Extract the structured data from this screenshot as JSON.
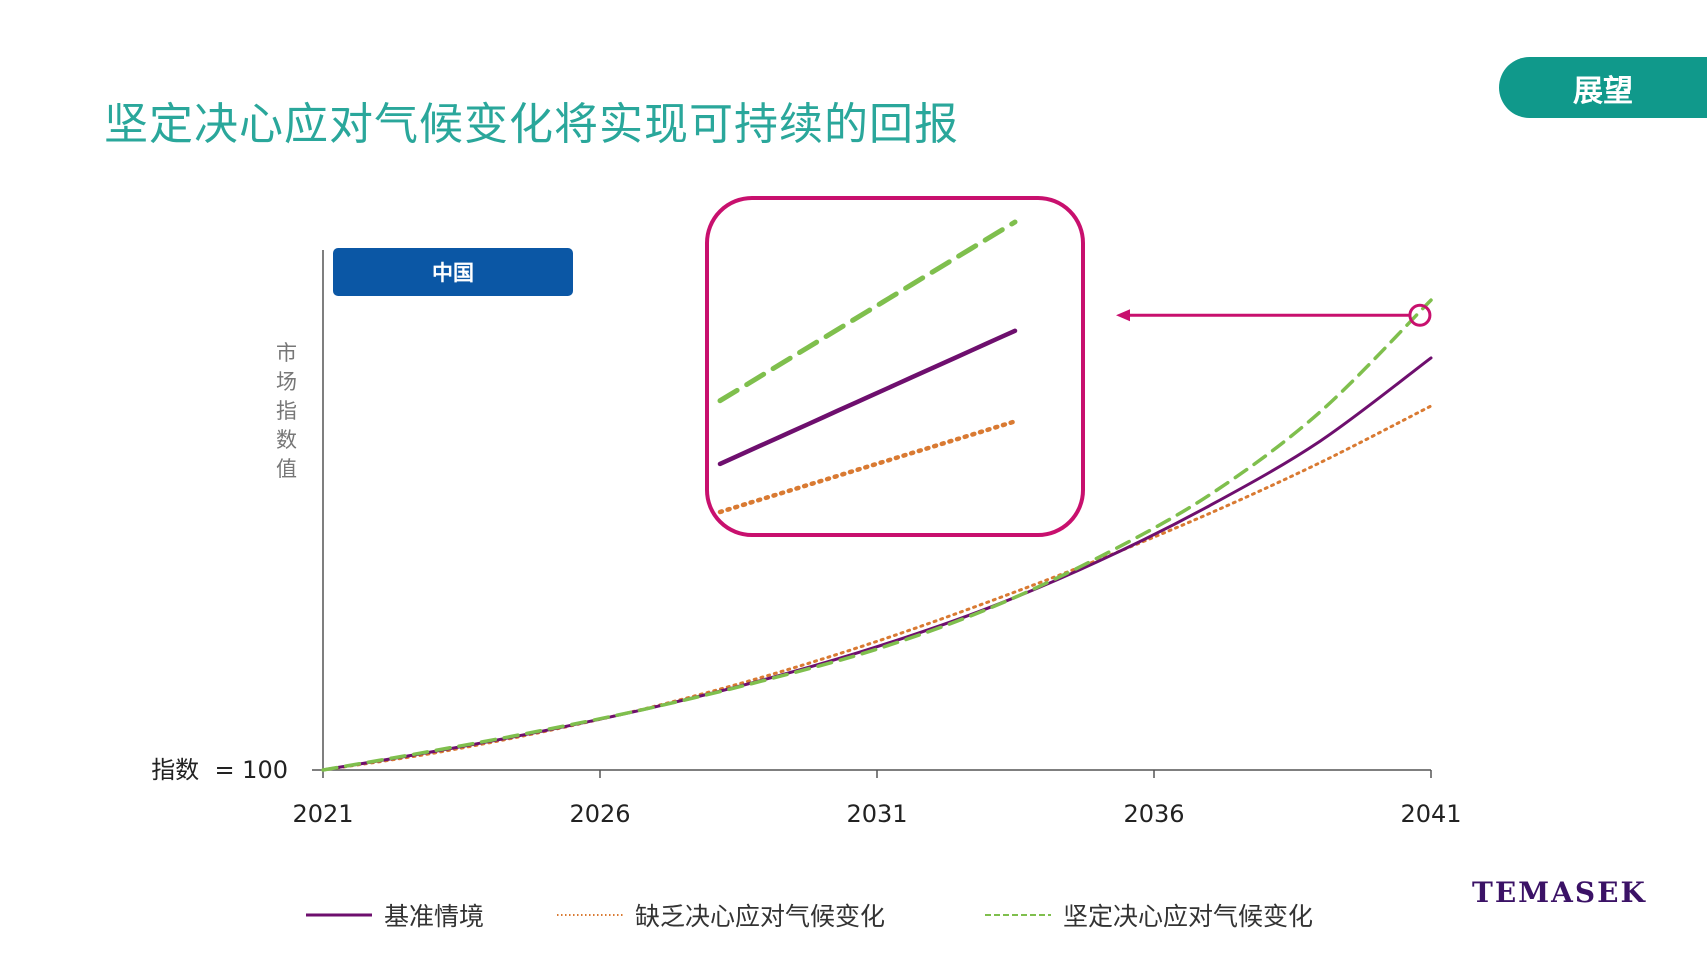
{
  "page": {
    "title": "坚定决心应对气候变化将实现可持续的回报",
    "section_tab": "展望",
    "logo": "TEMASEK"
  },
  "colors": {
    "title": "#2aa79b",
    "section_tab": "#10998b",
    "badge": "#0b57a5",
    "baseline": "#6e0f6e",
    "lack": "#d97a32",
    "resolve": "#7fbf4d",
    "highlight": "#c8106e",
    "axis": "#555555",
    "logo": "#3b1266"
  },
  "chart_data": {
    "type": "line",
    "region_label": "中国",
    "ylabel": "市场指数值",
    "y_base_label": "指数  = 100",
    "y_base_value": 100,
    "ylim": [
      100,
      235
    ],
    "xlim": [
      2021,
      2041
    ],
    "x_ticks": [
      "2021",
      "2026",
      "2031",
      "2036",
      "2041"
    ],
    "x": [
      2021,
      2023,
      2025,
      2027,
      2029,
      2031,
      2033,
      2035,
      2037,
      2039,
      2041
    ],
    "series": [
      {
        "name": "基准情境",
        "style": "solid",
        "values": [
          100,
          104.8,
          110.2,
          116.4,
          123.6,
          132.0,
          142.0,
          154.2,
          168.6,
          185.4,
          207.0
        ]
      },
      {
        "name": "缺乏决心应对气候变化",
        "style": "dotted",
        "values": [
          100,
          104.4,
          110.0,
          116.6,
          124.4,
          133.4,
          143.6,
          154.6,
          166.6,
          179.8,
          194.5
        ]
      },
      {
        "name": "坚定决心应对气候变化",
        "style": "dashed",
        "values": [
          100,
          105.0,
          110.4,
          116.4,
          123.4,
          131.4,
          141.8,
          155.2,
          171.4,
          193.0,
          222.0
        ]
      }
    ],
    "legend_position": "bottom",
    "grid": false,
    "inset": {
      "description_free": true,
      "zoom_x_range": [
        2039.3,
        2041
      ]
    }
  }
}
